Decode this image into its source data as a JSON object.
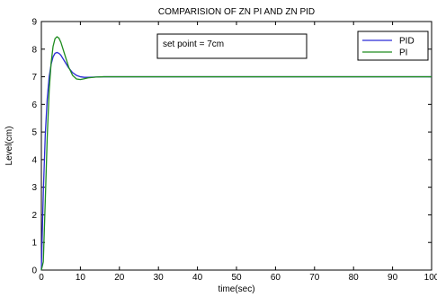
{
  "chart_data": {
    "type": "line",
    "title": "COMPARISION OF ZN PI AND ZN PID",
    "xlabel": "time(sec)",
    "ylabel": "Level(cm)",
    "xlim": [
      0,
      100
    ],
    "ylim": [
      0,
      9
    ],
    "xticks": [
      0,
      10,
      20,
      30,
      40,
      50,
      60,
      70,
      80,
      90,
      100
    ],
    "yticks": [
      0,
      1,
      2,
      3,
      4,
      5,
      6,
      7,
      8,
      9
    ],
    "grid": false,
    "legend_position": "top-right",
    "annotation": "set point = 7cm",
    "series": [
      {
        "name": "PID",
        "color": "#2a2ad6",
        "x": [
          0,
          0.5,
          1,
          1.5,
          2,
          2.5,
          3,
          3.5,
          4,
          4.5,
          5,
          6,
          7,
          8,
          9,
          10,
          11,
          12,
          14,
          16,
          18,
          20,
          30,
          40,
          50,
          60,
          70,
          80,
          90,
          100
        ],
        "y": [
          0,
          2.8,
          4.9,
          6.2,
          7.0,
          7.45,
          7.72,
          7.85,
          7.88,
          7.85,
          7.78,
          7.55,
          7.32,
          7.15,
          7.05,
          7.0,
          6.98,
          6.98,
          6.99,
          7.0,
          7.0,
          7.0,
          7.0,
          7.0,
          7.0,
          7.0,
          7.0,
          7.0,
          7.0,
          7.0
        ]
      },
      {
        "name": "PI",
        "color": "#1e8c1e",
        "x": [
          0,
          0.5,
          1,
          1.5,
          2,
          2.5,
          3,
          3.5,
          4,
          4.5,
          5,
          6,
          7,
          8,
          9,
          10,
          11,
          12,
          14,
          16,
          18,
          20,
          30,
          40,
          50,
          60,
          70,
          80,
          90,
          100
        ],
        "y": [
          0,
          0.3,
          2.5,
          4.8,
          6.5,
          7.5,
          8.1,
          8.38,
          8.45,
          8.4,
          8.25,
          7.8,
          7.35,
          7.05,
          6.92,
          6.9,
          6.93,
          6.96,
          6.99,
          7.0,
          7.0,
          7.0,
          7.0,
          7.0,
          7.0,
          7.0,
          7.0,
          7.0,
          7.0,
          7.0
        ]
      }
    ]
  }
}
